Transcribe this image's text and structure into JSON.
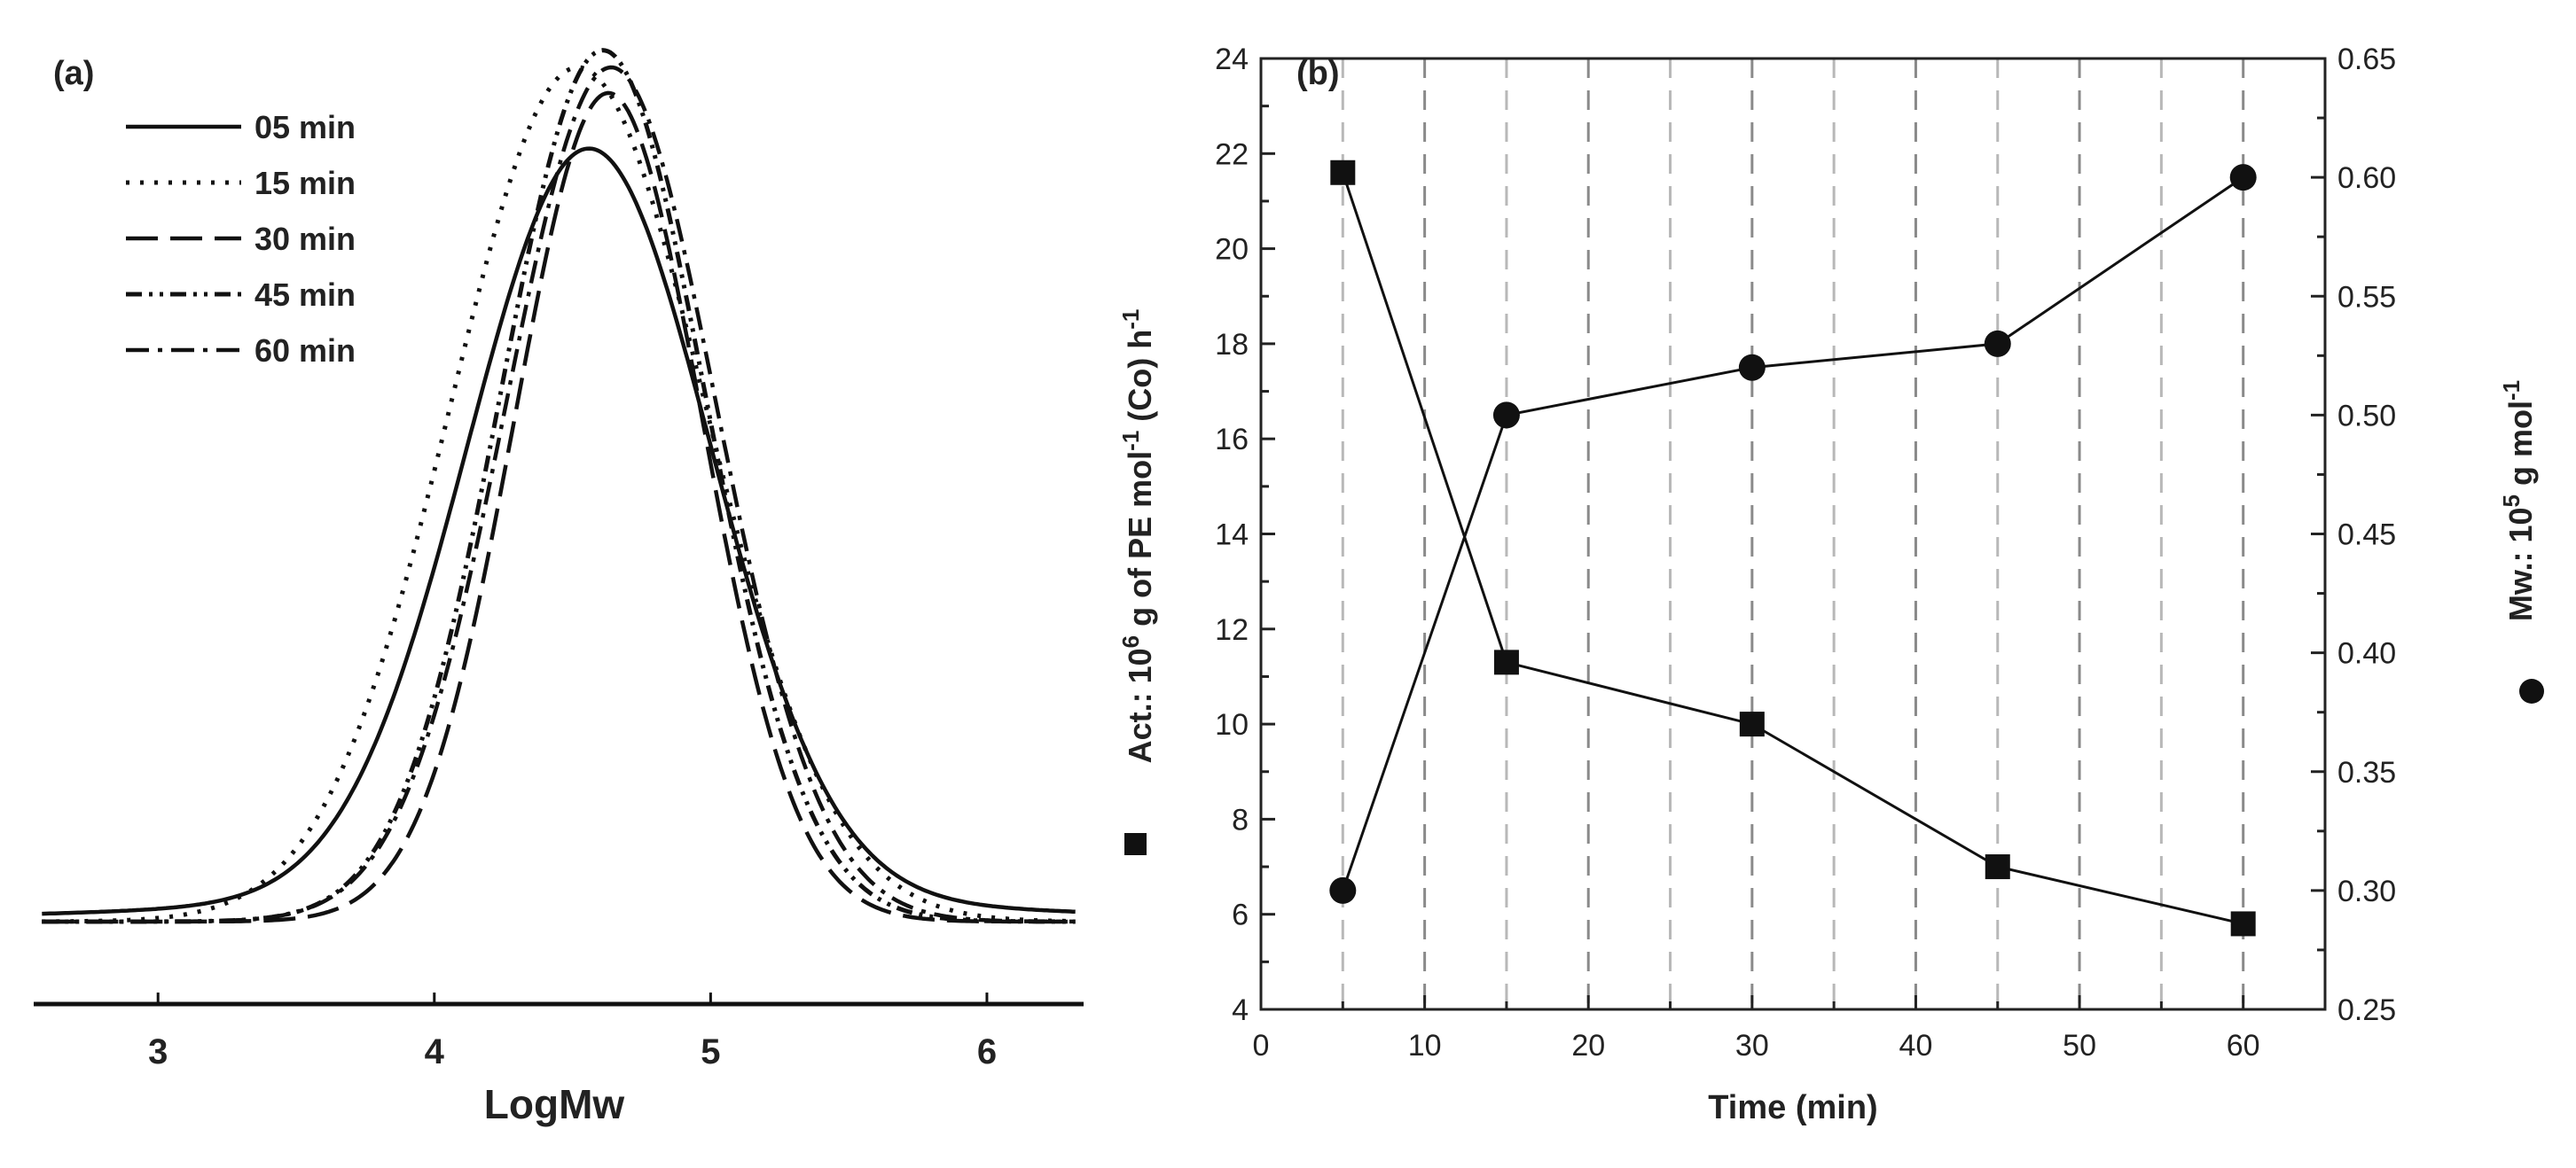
{
  "chart_data": [
    {
      "panel": "(a)",
      "type": "line",
      "xlabel": "LogMw",
      "ylabel": "",
      "xlim": [
        2.55,
        6.35
      ],
      "ylim": [
        -0.1,
        1.08
      ],
      "x_ticks": [
        "3",
        "4",
        "5",
        "6"
      ],
      "legend": {
        "placement": "top-left",
        "entries": [
          "05 min",
          "15 min",
          "30 min",
          "45 min",
          "60 min"
        ]
      },
      "series": [
        {
          "name": "05 min",
          "style": "solid",
          "peak_x": 4.56,
          "peak_y": 0.88,
          "sigma": 0.44,
          "tail": 0.025
        },
        {
          "name": "15 min",
          "style": "dotted",
          "peak_x": 4.52,
          "peak_y": 1.0,
          "sigma": 0.46,
          "tail": 0.0
        },
        {
          "name": "30 min",
          "style": "dashed",
          "peak_x": 4.63,
          "peak_y": 0.97,
          "sigma": 0.34,
          "tail": 0.0
        },
        {
          "name": "45 min",
          "style": "dash-dot-dot",
          "peak_x": 4.61,
          "peak_y": 1.02,
          "sigma": 0.37,
          "tail": 0.0
        },
        {
          "name": "60 min",
          "style": "dash-dot",
          "peak_x": 4.64,
          "peak_y": 1.0,
          "sigma": 0.38,
          "tail": 0.0
        }
      ]
    },
    {
      "panel": "(b)",
      "type": "scatter",
      "xlabel": "Time (min)",
      "ylabel_left_prefix": "Act.: 10",
      "ylabel_left_sup1": "6",
      "ylabel_left_mid": " g of PE mol",
      "ylabel_left_sup2": "-1",
      "ylabel_left_suffix": " (Co) h",
      "ylabel_left_sup3": "-1",
      "ylabel_right_prefix": "Mw.: 10",
      "ylabel_right_sup": "5",
      "ylabel_right_suffix": " g mol",
      "ylabel_right_sup2": "-1",
      "xlim": [
        0,
        65
      ],
      "ylim_left": [
        4,
        24
      ],
      "ylim_right": [
        0.25,
        0.65
      ],
      "x_ticks": [
        "0",
        "10",
        "20",
        "30",
        "40",
        "50",
        "60"
      ],
      "y_left_ticks": [
        "4",
        "6",
        "8",
        "10",
        "12",
        "14",
        "16",
        "18",
        "20",
        "22",
        "24"
      ],
      "y_right_ticks": [
        "0.25",
        "0.30",
        "0.35",
        "0.40",
        "0.45",
        "0.50",
        "0.55",
        "0.60",
        "0.65"
      ],
      "grid": "vertical dashed lines every 5 min",
      "series": [
        {
          "name": "Act.",
          "marker": "square",
          "axis": "left",
          "x": [
            5,
            15,
            30,
            45,
            60
          ],
          "values": [
            21.6,
            11.3,
            10.0,
            7.0,
            5.8
          ]
        },
        {
          "name": "Mw",
          "marker": "circle",
          "axis": "right",
          "x": [
            5,
            15,
            30,
            45,
            60
          ],
          "values": [
            0.3,
            0.5,
            0.52,
            0.53,
            0.6
          ]
        }
      ]
    }
  ]
}
